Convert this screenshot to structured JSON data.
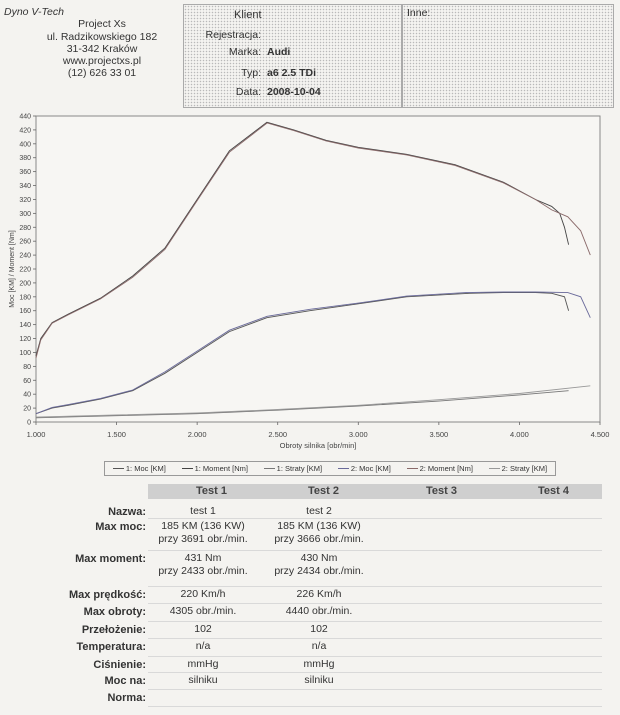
{
  "shop": {
    "brand": "Dyno V-Tech",
    "lines": [
      "Project Xs",
      "ul. Radzikowskiego 182",
      "31-342 Kraków",
      "www.projectxs.pl",
      "(12) 626 33 01"
    ]
  },
  "info": {
    "title": "Klient",
    "rows": [
      {
        "label": "Rejestracja:",
        "value": ""
      },
      {
        "label": "Marka:",
        "value": "Audi"
      },
      {
        "label": "Typ:",
        "value": "a6 2.5 TDi"
      },
      {
        "label": "Data:",
        "value": "2008-10-04"
      }
    ]
  },
  "notes": {
    "label": "Inne:"
  },
  "chart_data": {
    "type": "line",
    "xlabel": "Obroty silnika [obr/min]",
    "ylabel": "Moc [KM] / Moment [Nm]",
    "xlim": [
      1000,
      4500
    ],
    "ylim": [
      0,
      440
    ],
    "xticks": [
      1000,
      1500,
      2000,
      2500,
      3000,
      3500,
      4000,
      4500
    ],
    "xtick_labels": [
      "1.000",
      "1.500",
      "2.000",
      "2.500",
      "3.000",
      "3.500",
      "4.000",
      "4.500"
    ],
    "yticks": [
      0,
      20,
      40,
      60,
      80,
      100,
      120,
      140,
      160,
      180,
      200,
      220,
      240,
      260,
      280,
      300,
      320,
      340,
      360,
      380,
      400,
      420,
      440
    ],
    "grid": false,
    "legend_position": "bottom",
    "series": [
      {
        "name": "1: Moc [KM]",
        "x": [
          1000,
          1100,
          1200,
          1400,
          1600,
          1800,
          2000,
          2200,
          2433,
          2700,
          3000,
          3300,
          3691,
          3900,
          4100,
          4200,
          4280,
          4305
        ],
        "y": [
          12,
          20,
          24,
          33,
          45,
          70,
          100,
          130,
          150,
          160,
          170,
          180,
          185,
          186,
          186,
          185,
          180,
          160
        ]
      },
      {
        "name": "1: Moment [Nm]",
        "x": [
          1000,
          1030,
          1100,
          1200,
          1400,
          1600,
          1800,
          2000,
          2200,
          2433,
          2600,
          2800,
          3000,
          3300,
          3600,
          3900,
          4100,
          4200,
          4250,
          4280,
          4305
        ],
        "y": [
          95,
          120,
          143,
          155,
          178,
          210,
          250,
          320,
          390,
          431,
          420,
          405,
          395,
          385,
          370,
          345,
          320,
          310,
          300,
          280,
          255
        ]
      },
      {
        "name": "1: Straty [KM]",
        "x": [
          1000,
          1500,
          2000,
          2500,
          3000,
          3500,
          4000,
          4305
        ],
        "y": [
          6,
          9,
          12,
          17,
          23,
          30,
          39,
          45
        ]
      },
      {
        "name": "2: Moc [KM]",
        "x": [
          1000,
          1100,
          1200,
          1400,
          1600,
          1800,
          2000,
          2200,
          2434,
          2700,
          3000,
          3300,
          3666,
          3900,
          4100,
          4300,
          4380,
          4440
        ],
        "y": [
          12,
          21,
          25,
          34,
          46,
          72,
          102,
          132,
          152,
          162,
          171,
          181,
          186,
          187,
          187,
          186,
          180,
          150
        ]
      },
      {
        "name": "2: Moment [Nm]",
        "x": [
          1000,
          1030,
          1100,
          1200,
          1400,
          1600,
          1800,
          2000,
          2200,
          2434,
          2600,
          2800,
          3000,
          3300,
          3600,
          3900,
          4100,
          4200,
          4300,
          4380,
          4440
        ],
        "y": [
          92,
          118,
          142,
          154,
          177,
          208,
          248,
          318,
          388,
          430,
          419,
          404,
          394,
          384,
          369,
          344,
          320,
          305,
          295,
          275,
          240
        ]
      },
      {
        "name": "2: Straty [KM]",
        "x": [
          1000,
          1500,
          2000,
          2500,
          3000,
          3500,
          4000,
          4440
        ],
        "y": [
          7,
          10,
          13,
          18,
          24,
          32,
          41,
          52
        ]
      }
    ]
  },
  "table": {
    "columns": [
      "Test 1",
      "Test 2",
      "Test 3",
      "Test 4"
    ],
    "rows": [
      {
        "label": "Nazwa:",
        "t1": "test 1",
        "t1b": "",
        "t2": "test 2",
        "t2b": ""
      },
      {
        "label": "Max moc:",
        "t1": "185 KM (136 KW)",
        "t1b": "przy 3691 obr./min.",
        "t2": "185 KM (136 KW)",
        "t2b": "przy 3666 obr./min."
      },
      {
        "label": "Max moment:",
        "t1": "431 Nm",
        "t1b": "przy 2433 obr./min.",
        "t2": "430 Nm",
        "t2b": "przy 2434 obr./min."
      },
      {
        "label": "Max prędkość:",
        "t1": "220 Km/h",
        "t1b": "",
        "t2": "226 Km/h",
        "t2b": ""
      },
      {
        "label": "Max obroty:",
        "t1": "4305 obr./min.",
        "t1b": "",
        "t2": "4440 obr./min.",
        "t2b": ""
      },
      {
        "label": "Przełożenie:",
        "t1": "102",
        "t1b": "",
        "t2": "102",
        "t2b": ""
      },
      {
        "label": "Temperatura:",
        "t1": "n/a",
        "t1b": "",
        "t2": "n/a",
        "t2b": ""
      },
      {
        "label": "Ciśnienie:",
        "t1": "mmHg",
        "t1b": "",
        "t2": "mmHg",
        "t2b": ""
      },
      {
        "label": "Moc na:",
        "t1": "silniku",
        "t1b": "",
        "t2": "silniku",
        "t2b": ""
      },
      {
        "label": "Norma:",
        "t1": "",
        "t1b": "",
        "t2": "",
        "t2b": ""
      }
    ]
  }
}
